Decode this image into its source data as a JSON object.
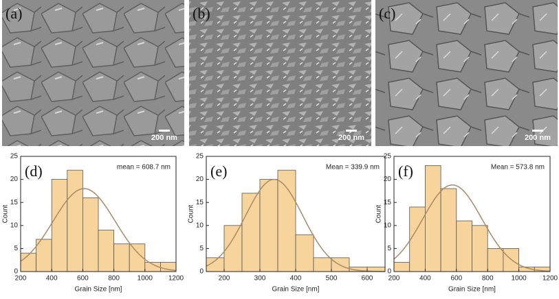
{
  "panels": [
    {
      "label": "(a)",
      "scale_bar": "200 nm"
    },
    {
      "label": "(b)",
      "scale_bar": "200 nm"
    },
    {
      "label": "(c)",
      "scale_bar": "200 nm"
    }
  ],
  "chart_data": [
    {
      "type": "histogram",
      "panel_label": "(d)",
      "annotation": "mean = 608.7 nm",
      "x_label": "Grain Size [nm]",
      "y_label": "Count",
      "bins": [
        200,
        300,
        400,
        500,
        600,
        700,
        800,
        900,
        1000,
        1100,
        1200
      ],
      "counts": [
        4,
        7,
        20,
        22,
        16,
        9,
        6,
        6,
        2,
        2
      ],
      "color": "#f7d49c",
      "edge_color": "#555555",
      "fit": {
        "mean": 608.7,
        "peak": 18,
        "sd": 200,
        "color": "#a88a66"
      },
      "xlim": [
        200,
        1200
      ],
      "xticks": [
        200,
        400,
        600,
        800,
        1000,
        1200
      ],
      "ylim": [
        0,
        25
      ],
      "yticks": [
        0,
        5,
        10,
        15,
        20,
        25
      ]
    },
    {
      "type": "histogram",
      "panel_label": "(e)",
      "annotation": "Mean = 339.9 nm",
      "x_label": "Grain Size [nm]",
      "y_label": "Count",
      "bins": [
        150,
        200,
        250,
        300,
        350,
        400,
        450,
        500,
        550,
        600,
        650
      ],
      "counts": [
        3,
        10,
        17,
        20,
        22,
        8,
        3,
        3,
        1,
        1
      ],
      "color": "#f7d49c",
      "edge_color": "#555555",
      "fit": {
        "mean": 339.9,
        "peak": 20,
        "sd": 80,
        "color": "#a88a66"
      },
      "xlim": [
        150,
        650
      ],
      "xticks": [
        200,
        300,
        400,
        500,
        600
      ],
      "ylim": [
        0,
        25
      ],
      "yticks": [
        0,
        5,
        10,
        15,
        20,
        25
      ]
    },
    {
      "type": "histogram",
      "panel_label": "(f)",
      "annotation": "Mean = 573.8 nm",
      "x_label": "Grain Size [nm]",
      "y_label": "Count",
      "bins": [
        200,
        300,
        400,
        500,
        600,
        700,
        800,
        900,
        1000,
        1100,
        1200
      ],
      "counts": [
        2,
        14,
        23,
        18,
        11,
        10,
        5,
        5,
        1,
        1
      ],
      "color": "#f7d49c",
      "edge_color": "#555555",
      "fit": {
        "mean": 573.8,
        "peak": 18.8,
        "sd": 190,
        "color": "#a88a66"
      },
      "xlim": [
        200,
        1200
      ],
      "xticks": [
        200,
        400,
        600,
        800,
        1000,
        1200
      ],
      "ylim": [
        0,
        25
      ],
      "yticks": [
        0,
        5,
        10,
        15,
        20,
        25
      ]
    }
  ]
}
